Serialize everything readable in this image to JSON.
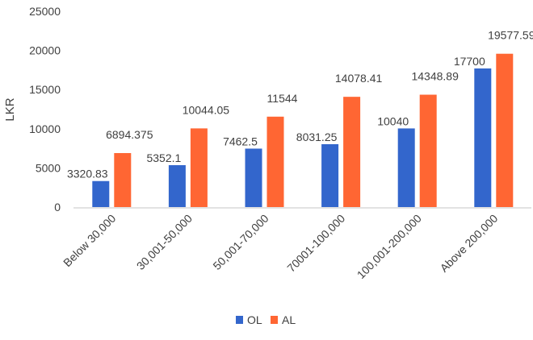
{
  "chart_data": {
    "type": "bar",
    "title": "",
    "xlabel": "",
    "ylabel": "LKR",
    "ylim": [
      0,
      25000
    ],
    "yticks": [
      0,
      5000,
      10000,
      15000,
      20000,
      25000
    ],
    "grid": false,
    "legend_position": "bottom",
    "categories": [
      "Below 30,000",
      "30,001-50,000",
      "50,001-70,000",
      "70001-100,000",
      "100,001-200,000",
      "Above 200,000"
    ],
    "series": [
      {
        "name": "OL",
        "color": "#3366CC",
        "values": [
          3320.83,
          5352.1,
          7462.5,
          8031.25,
          10040,
          17700
        ],
        "labels": [
          "3320.83",
          "5352.1",
          "7462.5",
          "8031.25",
          "10040",
          "17700"
        ]
      },
      {
        "name": "AL",
        "color": "#FF6633",
        "values": [
          6894.375,
          10044.05,
          11544,
          14078.41,
          14348.89,
          19577.59
        ],
        "labels": [
          "6894.375",
          "10044.05",
          "11544",
          "14078.41",
          "14348.89",
          "19577.59"
        ]
      }
    ]
  }
}
